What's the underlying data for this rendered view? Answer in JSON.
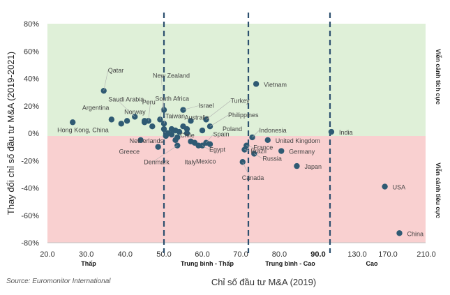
{
  "chart_data": {
    "type": "scatter",
    "title": "",
    "xlabel": "Chỉ số đầu tư M&A (2019)",
    "ylabel": "Thay đổi chỉ số đầu tư M&A (2019-2021)",
    "x_ticks": [
      "20.0",
      "30.0",
      "40.0",
      "50.0",
      "60.0",
      "70.0",
      "80.0",
      "90.0",
      "130.0",
      "170.0",
      "210.0"
    ],
    "x_tick_values": [
      20,
      30,
      40,
      50,
      60,
      70,
      80,
      90,
      130,
      170,
      210
    ],
    "x_tick_overlap_label": "90.0",
    "y_ticks": [
      "80%",
      "60%",
      "40%",
      "20%",
      "0%",
      "-20%",
      "-40%",
      "-60%",
      "-80%"
    ],
    "y_tick_values": [
      80,
      60,
      40,
      20,
      0,
      -20,
      -40,
      -60,
      -80
    ],
    "ylim": [
      -80,
      80
    ],
    "y_unit": "%",
    "thresholds": [
      50,
      72,
      110
    ],
    "bands": [
      "Thấp",
      "Trung bình - Thấp",
      "Trung bình - Cao",
      "Cao"
    ],
    "zones": {
      "positive": {
        "label": "Viễn cảnh tích cực",
        "color": "#dff0d8"
      },
      "negative": {
        "label": "Viễn cảnh tiêu cực",
        "color": "#f9d0d0"
      }
    },
    "colors": {
      "point": "#2f5a73",
      "divider": "#2c4f6e",
      "axis": "#bfbfbf"
    },
    "points": [
      {
        "name": "Qatar",
        "x": 34.5,
        "y": 31
      },
      {
        "name": "Saudi Arabia",
        "x": 42.5,
        "y": 12
      },
      {
        "name": "Argentina",
        "x": 36.5,
        "y": 10
      },
      {
        "name": "Hong Kong, China",
        "x": 26.5,
        "y": 8
      },
      {
        "name": "New Zealand",
        "x": 50,
        "y": 17
      },
      {
        "name": "South Africa",
        "x": 49,
        "y": 10
      },
      {
        "name": "Peru",
        "x": 46,
        "y": 9
      },
      {
        "name": "Norway",
        "x": 45,
        "y": 8
      },
      {
        "name": "Taiwan",
        "x": 50,
        "y": 7
      },
      {
        "name": "Netherlands",
        "x": 44,
        "y": -5
      },
      {
        "name": "Greece",
        "x": 48.5,
        "y": -10
      },
      {
        "name": "Denmark",
        "x": 53.5,
        "y": -9
      },
      {
        "name": "Chile",
        "x": 53.5,
        "y": -3
      },
      {
        "name": "Israel",
        "x": 55,
        "y": 17
      },
      {
        "name": "Australia",
        "x": 57,
        "y": 9
      },
      {
        "name": "Turkey",
        "x": 61,
        "y": 10
      },
      {
        "name": "Philippines",
        "x": 62,
        "y": 5
      },
      {
        "name": "Poland",
        "x": 60,
        "y": 2
      },
      {
        "name": "Spain",
        "x": 61,
        "y": -7
      },
      {
        "name": "Egypt",
        "x": 60,
        "y": -9
      },
      {
        "name": "Italy",
        "x": 59,
        "y": -9
      },
      {
        "name": "Mexico",
        "x": 58,
        "y": -7
      },
      {
        "name": "Vietnam",
        "x": 74,
        "y": 36
      },
      {
        "name": "Indonesia",
        "x": 73,
        "y": -3
      },
      {
        "name": "France",
        "x": 71.5,
        "y": -9
      },
      {
        "name": "Brazil",
        "x": 71,
        "y": -12
      },
      {
        "name": "Canada",
        "x": 70.5,
        "y": -21
      },
      {
        "name": "Russia",
        "x": 73.5,
        "y": -15
      },
      {
        "name": "United Kingdom",
        "x": 77,
        "y": -5
      },
      {
        "name": "Germany",
        "x": 80.5,
        "y": -13
      },
      {
        "name": "Japan",
        "x": 84.5,
        "y": -24
      },
      {
        "name": "India",
        "x": 111,
        "y": 1
      },
      {
        "name": "USA",
        "x": 166,
        "y": -39
      },
      {
        "name": "China",
        "x": 182,
        "y": -73
      },
      {
        "name": "",
        "x": 39,
        "y": 7
      },
      {
        "name": "",
        "x": 40.5,
        "y": 9
      },
      {
        "name": "",
        "x": 45,
        "y": 9
      },
      {
        "name": "",
        "x": 47,
        "y": 5
      },
      {
        "name": "",
        "x": 50,
        "y": 3
      },
      {
        "name": "",
        "x": 51,
        "y": 0
      },
      {
        "name": "",
        "x": 52,
        "y": 3
      },
      {
        "name": "",
        "x": 53,
        "y": 2
      },
      {
        "name": "",
        "x": 54,
        "y": 1
      },
      {
        "name": "",
        "x": 55,
        "y": 5
      },
      {
        "name": "",
        "x": 56,
        "y": 3
      },
      {
        "name": "",
        "x": 52,
        "y": -1
      },
      {
        "name": "",
        "x": 50.5,
        "y": -2
      },
      {
        "name": "",
        "x": 57,
        "y": -6
      },
      {
        "name": "",
        "x": 62,
        "y": -8
      },
      {
        "name": "",
        "x": 56,
        "y": 0
      },
      {
        "name": "",
        "x": 53,
        "y": -5
      }
    ]
  },
  "source": "Source: Euromonitor International"
}
